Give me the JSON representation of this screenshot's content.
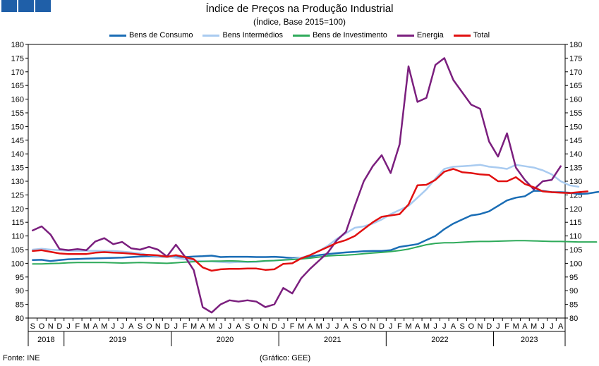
{
  "chart_data": {
    "type": "line",
    "title": "Índice de Preços na Produção Industrial",
    "subtitle": "(Índice, Base 2015=100)",
    "source": "Fonte: INE",
    "credit": "(Gráfico: GEE)",
    "ylim": [
      80,
      180
    ],
    "yticks": [
      80,
      85,
      90,
      95,
      100,
      105,
      110,
      115,
      120,
      125,
      130,
      135,
      140,
      145,
      150,
      155,
      160,
      165,
      170,
      175,
      180
    ],
    "x_month_letters": [
      "S",
      "O",
      "N",
      "D",
      "J",
      "F",
      "M",
      "A",
      "M",
      "J",
      "J",
      "A",
      "S",
      "O",
      "N",
      "D",
      "J",
      "F",
      "M",
      "A",
      "M",
      "J",
      "J",
      "A",
      "S",
      "O",
      "N",
      "D",
      "J",
      "F",
      "M",
      "A",
      "M",
      "J",
      "J",
      "A",
      "S",
      "O",
      "N",
      "D",
      "J",
      "F",
      "M",
      "A",
      "M",
      "J",
      "J",
      "A",
      "S",
      "O",
      "N",
      "D",
      "J",
      "F",
      "M",
      "A",
      "M",
      "J",
      "J",
      "A"
    ],
    "year_labels": [
      "2018",
      "2019",
      "2020",
      "2021",
      "2022",
      "2023"
    ],
    "legend_position": "top",
    "grid": false,
    "series": [
      {
        "name": "Bens de Consumo",
        "color": "#1a6db5",
        "width": 2.5,
        "values": [
          101.2,
          101.3,
          100.8,
          101.2,
          101.5,
          101.6,
          101.7,
          101.8,
          101.9,
          102.0,
          102.1,
          102.3,
          102.5,
          102.6,
          102.5,
          102.4,
          102.3,
          102.3,
          102.5,
          102.6,
          102.8,
          102.3,
          102.4,
          102.4,
          102.4,
          102.3,
          102.3,
          102.4,
          102.2,
          101.9,
          102.0,
          102.5,
          103.0,
          103.4,
          103.7,
          104.0,
          104.2,
          104.4,
          104.5,
          104.5,
          104.8,
          106.0,
          106.5,
          107.0,
          108.5,
          110.0,
          112.5,
          114.5,
          116.0,
          117.5,
          118.0,
          119.0,
          121.0,
          123.0,
          124.0,
          124.5,
          126.5,
          126.5,
          126.0,
          126.0,
          125.8,
          125.3,
          125.5,
          126.0,
          126.5
        ]
      },
      {
        "name": "Bens Intermédios",
        "color": "#a9cbf0",
        "width": 2.5,
        "values": [
          105.0,
          105.3,
          105.0,
          104.8,
          104.6,
          104.6,
          104.6,
          104.6,
          104.5,
          104.5,
          104.3,
          104.0,
          103.6,
          103.0,
          102.7,
          102.5,
          102.0,
          101.5,
          101.0,
          100.8,
          100.7,
          100.5,
          100.3,
          100.5,
          100.4,
          100.5,
          100.8,
          101.0,
          101.3,
          101.5,
          102.0,
          103.0,
          104.5,
          106.5,
          109.0,
          111.0,
          113.0,
          113.5,
          114.5,
          116.0,
          118.0,
          119.5,
          121.0,
          124.0,
          127.0,
          131.0,
          134.5,
          135.3,
          135.5,
          135.7,
          136.0,
          135.3,
          135.0,
          134.5,
          136.0,
          135.5,
          135.0,
          134.0,
          132.5,
          130.0,
          128.5,
          128.0
        ]
      },
      {
        "name": "Bens de Investimento",
        "color": "#2eaa5a",
        "width": 2,
        "values": [
          99.8,
          99.8,
          99.9,
          100.0,
          100.2,
          100.3,
          100.3,
          100.3,
          100.3,
          100.2,
          100.1,
          100.2,
          100.3,
          100.2,
          100.1,
          100.0,
          100.2,
          100.4,
          100.6,
          100.7,
          100.8,
          100.8,
          100.9,
          100.8,
          100.6,
          100.7,
          100.9,
          101.0,
          101.2,
          101.4,
          101.6,
          101.9,
          102.3,
          102.7,
          102.9,
          103.0,
          103.2,
          103.5,
          103.8,
          104.0,
          104.3,
          104.7,
          105.2,
          106.0,
          106.8,
          107.3,
          107.5,
          107.5,
          107.7,
          107.9,
          108.0,
          108.0,
          108.1,
          108.2,
          108.3,
          108.3,
          108.2,
          108.1,
          108.0,
          108.0,
          107.9,
          107.8,
          107.8,
          107.8
        ]
      },
      {
        "name": "Energia",
        "color": "#7b1f7e",
        "width": 2.5,
        "values": [
          112.0,
          113.5,
          110.5,
          105.2,
          104.8,
          105.2,
          104.8,
          108.0,
          109.2,
          107.0,
          107.8,
          105.5,
          105.0,
          106.0,
          105.0,
          102.5,
          106.8,
          102.5,
          97.5,
          84.0,
          82.0,
          85.0,
          86.5,
          86.0,
          86.5,
          86.0,
          84.0,
          85.0,
          91.0,
          89.0,
          94.5,
          98.0,
          101.0,
          104.0,
          108.5,
          111.5,
          121.0,
          130.0,
          135.5,
          139.5,
          133.0,
          143.5,
          172.0,
          159.0,
          160.5,
          172.5,
          175.0,
          167.0,
          162.5,
          158.0,
          156.5,
          144.5,
          139.0,
          147.5,
          135.0,
          130.5,
          127.0,
          130.0,
          130.5,
          135.5
        ]
      },
      {
        "name": "Total",
        "color": "#e11010",
        "width": 2.5,
        "values": [
          104.5,
          104.8,
          104.2,
          103.6,
          103.4,
          103.4,
          103.4,
          103.9,
          104.1,
          103.9,
          103.8,
          103.5,
          103.2,
          103.1,
          102.9,
          102.4,
          103.0,
          102.3,
          101.5,
          98.5,
          97.3,
          97.8,
          98.0,
          98.0,
          98.1,
          98.1,
          97.6,
          97.8,
          99.8,
          100.0,
          101.8,
          103.0,
          104.5,
          106.0,
          107.5,
          108.5,
          110.0,
          112.5,
          115.0,
          117.0,
          117.5,
          118.0,
          121.5,
          128.5,
          128.7,
          130.5,
          133.5,
          134.5,
          133.3,
          133.0,
          132.5,
          132.3,
          130.0,
          130.0,
          131.5,
          129.0,
          127.8,
          126.3,
          126.0,
          125.8,
          125.7,
          126.0,
          126.3
        ]
      }
    ]
  }
}
